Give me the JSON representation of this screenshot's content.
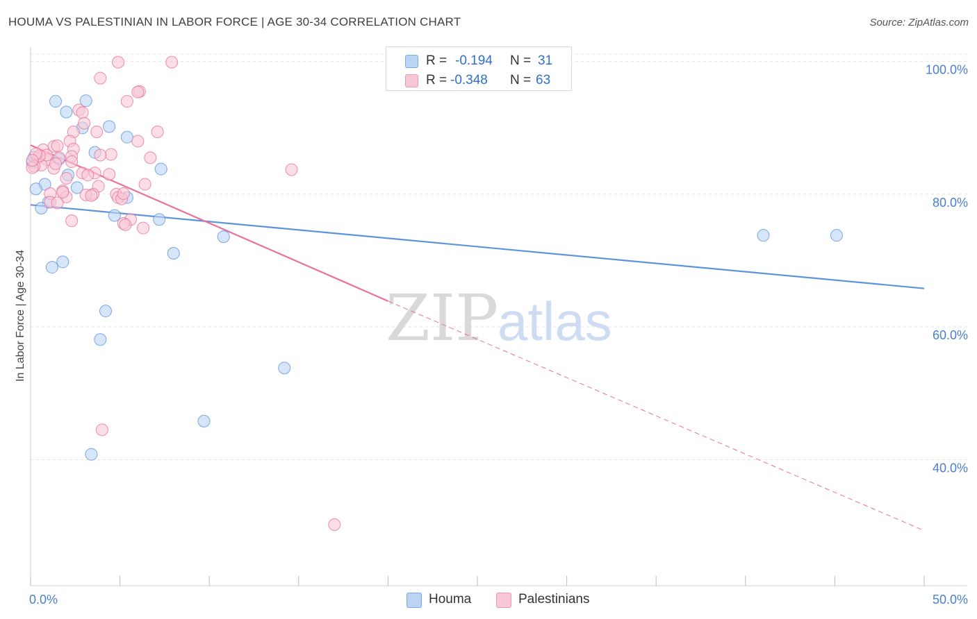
{
  "title": "HOUMA VS PALESTINIAN IN LABOR FORCE | AGE 30-34 CORRELATION CHART",
  "source": "Source: ZipAtlas.com",
  "watermark": {
    "zip": "ZIP",
    "atlas": "atlas"
  },
  "legend": {
    "rows": [
      {
        "r_label": "R =",
        "r_value": "-0.194",
        "n_label": "N =",
        "n_value": "31",
        "color": "#a9c8f0"
      },
      {
        "r_label": "R =",
        "r_value": "-0.348",
        "n_label": "N =",
        "n_value": "63",
        "color": "#f6b8cb"
      }
    ]
  },
  "chart_data": {
    "type": "scatter",
    "title": "HOUMA VS PALESTINIAN IN LABOR FORCE | AGE 30-34 CORRELATION CHART",
    "xlabel": "",
    "ylabel": "In Labor Force | Age 30-34",
    "xlim": [
      0,
      50
    ],
    "ylim": [
      21,
      103
    ],
    "x_tick_labels": [
      {
        "value": 0,
        "label": "0.0%"
      },
      {
        "value": 50,
        "label": "50.0%"
      }
    ],
    "y_ticks": [
      {
        "value": 40,
        "label": "40.0%"
      },
      {
        "value": 60,
        "label": "60.0%"
      },
      {
        "value": 80,
        "label": "80.0%"
      },
      {
        "value": 100,
        "label": "100.0%"
      }
    ],
    "grid": true,
    "series": [
      {
        "name": "Houma",
        "color": "#5b93dd",
        "fill": "#bcd4f4",
        "points": [
          [
            1.4,
            94.0
          ],
          [
            3.1,
            94.1
          ],
          [
            2.0,
            92.4
          ],
          [
            2.9,
            90.0
          ],
          [
            4.4,
            90.2
          ],
          [
            5.4,
            88.6
          ],
          [
            3.6,
            86.3
          ],
          [
            7.3,
            83.8
          ],
          [
            2.1,
            82.9
          ],
          [
            0.8,
            81.5
          ],
          [
            2.6,
            81.0
          ],
          [
            0.3,
            80.8
          ],
          [
            5.4,
            79.5
          ],
          [
            1.0,
            78.8
          ],
          [
            0.6,
            77.9
          ],
          [
            4.7,
            76.8
          ],
          [
            7.2,
            76.2
          ],
          [
            10.8,
            73.6
          ],
          [
            8.0,
            71.1
          ],
          [
            1.8,
            69.8
          ],
          [
            1.2,
            69.0
          ],
          [
            4.2,
            62.4
          ],
          [
            3.9,
            58.1
          ],
          [
            14.2,
            53.8
          ],
          [
            9.7,
            45.8
          ],
          [
            3.4,
            40.8
          ],
          [
            41.0,
            73.8
          ],
          [
            45.1,
            73.8
          ],
          [
            0.1,
            84.8
          ],
          [
            0.2,
            85.6
          ],
          [
            1.6,
            85.3
          ]
        ],
        "trend": {
          "x0": 0,
          "y0": 78.4,
          "x1": 50,
          "y1": 65.8
        }
      },
      {
        "name": "Palestinians",
        "color": "#e8729b",
        "fill": "#f8c8d6",
        "points": [
          [
            4.9,
            99.9
          ],
          [
            7.9,
            99.9
          ],
          [
            3.9,
            97.5
          ],
          [
            6.1,
            95.5
          ],
          [
            6.0,
            95.4
          ],
          [
            5.4,
            94.0
          ],
          [
            2.7,
            92.7
          ],
          [
            2.9,
            92.3
          ],
          [
            3.0,
            90.7
          ],
          [
            7.1,
            89.4
          ],
          [
            2.4,
            89.4
          ],
          [
            6.0,
            88.0
          ],
          [
            2.2,
            88.0
          ],
          [
            1.3,
            87.2
          ],
          [
            2.4,
            86.8
          ],
          [
            0.7,
            86.7
          ],
          [
            4.5,
            86.0
          ],
          [
            3.9,
            85.9
          ],
          [
            2.3,
            85.7
          ],
          [
            6.7,
            85.5
          ],
          [
            0.4,
            85.5
          ],
          [
            1.6,
            85.5
          ],
          [
            0.9,
            85.2
          ],
          [
            0.6,
            84.4
          ],
          [
            0.2,
            84.2
          ],
          [
            0.1,
            84.0
          ],
          [
            1.3,
            83.9
          ],
          [
            14.6,
            83.7
          ],
          [
            3.6,
            83.2
          ],
          [
            2.9,
            83.2
          ],
          [
            3.2,
            82.9
          ],
          [
            2.0,
            82.4
          ],
          [
            6.4,
            81.5
          ],
          [
            3.8,
            81.2
          ],
          [
            1.8,
            80.5
          ],
          [
            1.1,
            80.1
          ],
          [
            3.5,
            80.0
          ],
          [
            4.8,
            80.0
          ],
          [
            3.1,
            79.9
          ],
          [
            3.4,
            79.8
          ],
          [
            2.0,
            79.6
          ],
          [
            4.9,
            79.5
          ],
          [
            1.1,
            78.8
          ],
          [
            5.1,
            79.3
          ],
          [
            1.5,
            78.7
          ],
          [
            5.6,
            76.2
          ],
          [
            2.3,
            76.0
          ],
          [
            5.2,
            75.6
          ],
          [
            5.3,
            75.4
          ],
          [
            6.3,
            74.9
          ],
          [
            1.8,
            80.3
          ],
          [
            0.9,
            85.9
          ],
          [
            3.7,
            89.4
          ],
          [
            4.0,
            44.5
          ],
          [
            17.0,
            30.2
          ],
          [
            1.5,
            87.3
          ],
          [
            0.5,
            85.8
          ],
          [
            0.3,
            86.1
          ],
          [
            2.3,
            84.9
          ],
          [
            0.1,
            85.1
          ],
          [
            5.2,
            80.1
          ],
          [
            1.4,
            84.6
          ],
          [
            4.4,
            83.0
          ]
        ],
        "trend": {
          "x0": 0,
          "y0": 87.4,
          "x1": 20,
          "y1": 63.9
        },
        "trend_dashed": {
          "x0": 20,
          "y0": 63.9,
          "x1": 50,
          "y1": 29.3
        }
      }
    ]
  },
  "bottom_legend": [
    {
      "label": "Houma",
      "color": "#a9c8f0"
    },
    {
      "label": "Palestinians",
      "color": "#f6b8cb"
    }
  ]
}
